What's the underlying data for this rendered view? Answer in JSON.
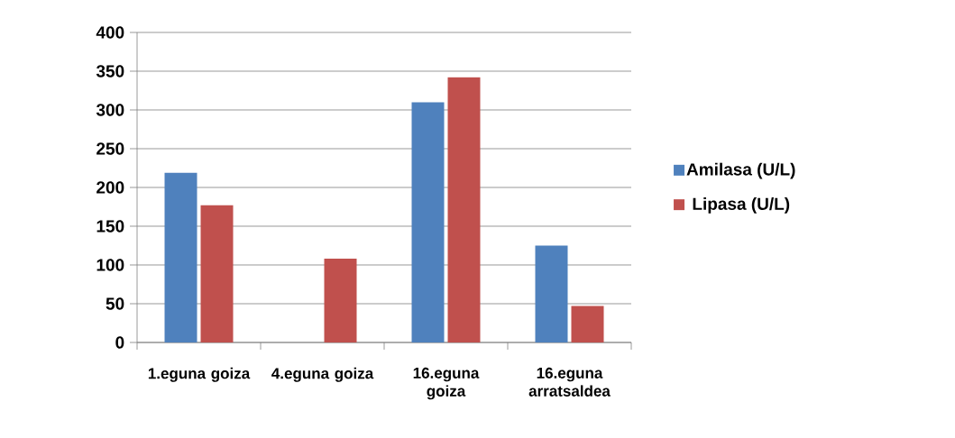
{
  "chart_data": {
    "type": "bar",
    "categories": [
      "1.eguna goiza",
      "4.eguna goiza",
      "16.eguna goiza",
      "16.eguna arratsaldea"
    ],
    "series": [
      {
        "name": "Amilasa (U/L)",
        "color": "#4f81bd",
        "values": [
          219,
          null,
          310,
          125
        ]
      },
      {
        "name": "Lipasa (U/L)",
        "color": "#c0504d",
        "values": [
          177,
          108,
          342,
          47
        ]
      }
    ],
    "ylim": [
      0,
      400
    ],
    "yticks": [
      0,
      50,
      100,
      150,
      200,
      250,
      300,
      350,
      400
    ],
    "grid": "y",
    "legend": "right"
  }
}
